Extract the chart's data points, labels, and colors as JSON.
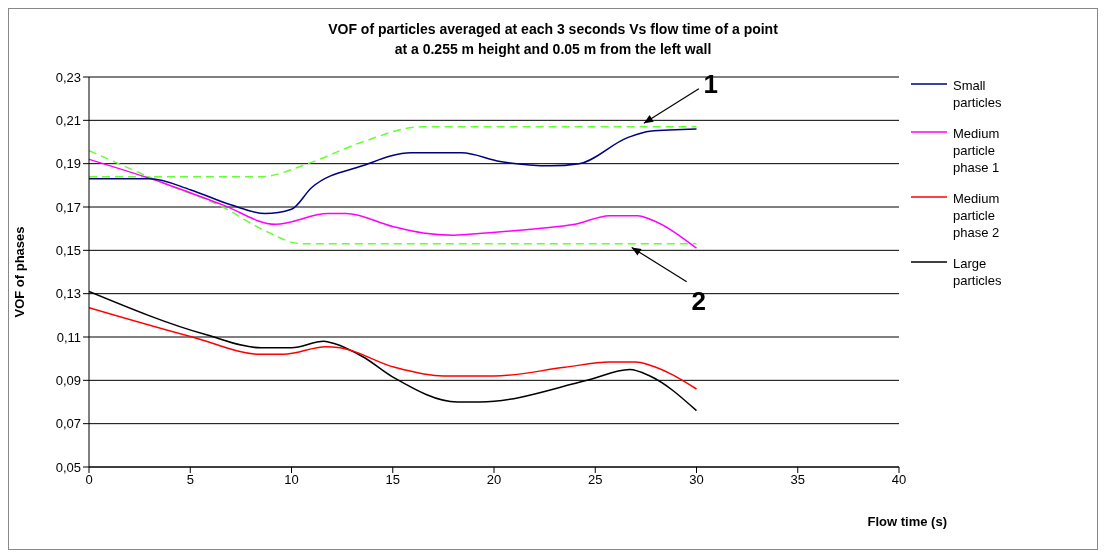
{
  "chart_data": {
    "type": "line",
    "title": "VOF of particles averaged at each 3 seconds Vs flow time of a point\nat a 0.255 m  height and 0.05 m from the left wall",
    "xlabel": "Flow time (s)",
    "ylabel": "VOF of phases",
    "xlim": [
      0,
      40
    ],
    "xticks": [
      0,
      5,
      10,
      15,
      20,
      25,
      30,
      35,
      40
    ],
    "ylim": [
      0.05,
      0.23
    ],
    "yticks": [
      {
        "value": 0.05,
        "label": "0,05"
      },
      {
        "value": 0.07,
        "label": "0,07"
      },
      {
        "value": 0.09,
        "label": "0,09"
      },
      {
        "value": 0.11,
        "label": "0,11"
      },
      {
        "value": 0.13,
        "label": "0,13"
      },
      {
        "value": 0.15,
        "label": "0,15"
      },
      {
        "value": 0.17,
        "label": "0,17"
      },
      {
        "value": 0.19,
        "label": "0,19"
      },
      {
        "value": 0.21,
        "label": "0,21"
      },
      {
        "value": 0.23,
        "label": "0,23"
      }
    ],
    "grid": "y",
    "legend": "right",
    "marker": "none",
    "line_style": "solid",
    "series": [
      {
        "name": "Small particles",
        "color": "#000080",
        "x": [
          0,
          3,
          5,
          7,
          8.7,
          10,
          11,
          13.5,
          15.9,
          18.4,
          20.3,
          22.8,
          24.2,
          26.6,
          27.7,
          30
        ],
        "values": [
          0.183,
          0.183,
          0.178,
          0.171,
          0.167,
          0.169,
          0.179,
          0.189,
          0.195,
          0.195,
          0.191,
          0.189,
          0.19,
          0.202,
          0.205,
          0.206
        ]
      },
      {
        "name": "Medium particle phase 1",
        "color": "#ff00ff",
        "x": [
          0,
          3.7,
          6.6,
          9.2,
          11.8,
          12.7,
          15,
          16.5,
          18,
          19.6,
          22.1,
          24,
          25.7,
          27.1,
          27.8,
          30
        ],
        "values": [
          0.192,
          0.181,
          0.171,
          0.162,
          0.167,
          0.167,
          0.161,
          0.158,
          0.157,
          0.158,
          0.16,
          0.162,
          0.166,
          0.166,
          0.164,
          0.151
        ]
      },
      {
        "name": "Medium particle phase 2",
        "color": "#ff0000",
        "x": [
          0,
          5.1,
          8.5,
          9.6,
          11.7,
          12.4,
          15.1,
          17.5,
          20,
          23.5,
          25.7,
          27,
          27.7,
          30
        ],
        "values": [
          0.1235,
          0.11,
          0.102,
          0.102,
          0.1055,
          0.105,
          0.096,
          0.092,
          0.092,
          0.096,
          0.0985,
          0.0985,
          0.097,
          0.086
        ]
      },
      {
        "name": "Large particles",
        "color": "#000000",
        "x": [
          0,
          5.8,
          8.5,
          10,
          11.6,
          12.1,
          13.5,
          15.1,
          18.2,
          19.3,
          24.6,
          26.7,
          27.7,
          30
        ],
        "values": [
          0.131,
          0.111,
          0.105,
          0.105,
          0.108,
          0.107,
          0.101,
          0.091,
          0.08,
          0.08,
          0.09,
          0.095,
          0.092,
          0.076
        ]
      },
      {
        "color": "#66ff33",
        "line_style": "dashed",
        "x": [
          0,
          8.5,
          10.8,
          13.5,
          16.4,
          30
        ],
        "values": [
          0.184,
          0.184,
          0.19,
          0.2,
          0.207,
          0.207
        ]
      },
      {
        "color": "#66ff33",
        "line_style": "dashed",
        "x": [
          0,
          3.7,
          6.6,
          8.7,
          10.5,
          30
        ],
        "values": [
          0.196,
          0.181,
          0.17,
          0.159,
          0.153,
          0.153
        ]
      }
    ],
    "annotations": [
      {
        "text": "1",
        "x": 27.4,
        "y": 0.207
      },
      {
        "text": "2",
        "x": 26.8,
        "y": 0.153
      }
    ]
  }
}
